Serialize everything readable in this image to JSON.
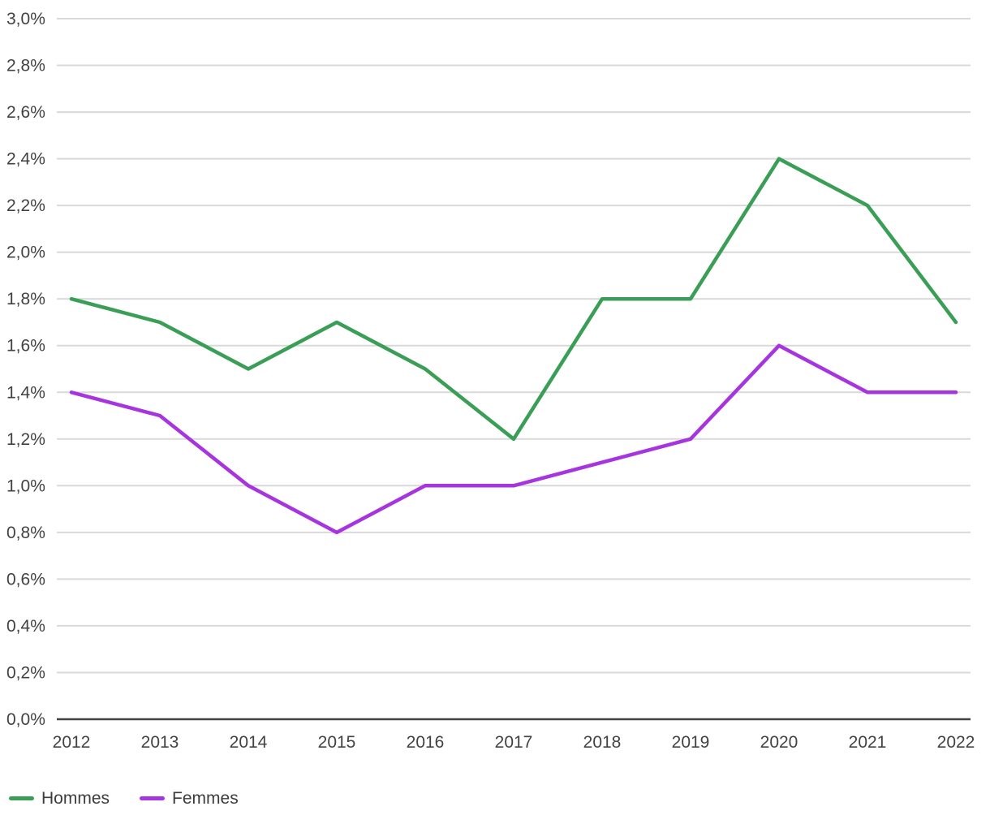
{
  "chart_data": {
    "type": "line",
    "title": "",
    "xlabel": "",
    "ylabel": "",
    "x": [
      2012,
      2013,
      2014,
      2015,
      2016,
      2017,
      2018,
      2019,
      2020,
      2021,
      2022
    ],
    "x_tick_labels": [
      "2012",
      "2013",
      "2014",
      "2015",
      "2016",
      "2017",
      "2018",
      "2019",
      "2020",
      "2021",
      "2022"
    ],
    "series": [
      {
        "name": "Hommes",
        "color": "#3A9E56",
        "values": [
          1.8,
          1.7,
          1.5,
          1.7,
          1.5,
          1.2,
          1.8,
          1.8,
          2.4,
          2.2,
          1.7
        ]
      },
      {
        "name": "Femmes",
        "color": "#A735DF",
        "values": [
          1.4,
          1.3,
          1.0,
          0.8,
          1.0,
          1.0,
          1.1,
          1.2,
          1.6,
          1.4,
          1.4
        ]
      }
    ],
    "ylim": [
      0.0,
      3.0
    ],
    "ytick_step": 0.2,
    "ytick_labels": [
      "0,0%",
      "0,2%",
      "0,4%",
      "0,6%",
      "0,8%",
      "1,0%",
      "1,2%",
      "1,4%",
      "1,6%",
      "1,8%",
      "2,0%",
      "2,2%",
      "2,4%",
      "2,6%",
      "2,8%",
      "3,0%"
    ],
    "grid": "horizontal",
    "legend_position": "bottom-left",
    "colors": {
      "gridline": "#d9d9d9",
      "axis_line": "#424242",
      "tick_text": "#424242",
      "background": "#ffffff"
    }
  },
  "legend": {
    "items": [
      {
        "label": "Hommes"
      },
      {
        "label": "Femmes"
      }
    ]
  }
}
